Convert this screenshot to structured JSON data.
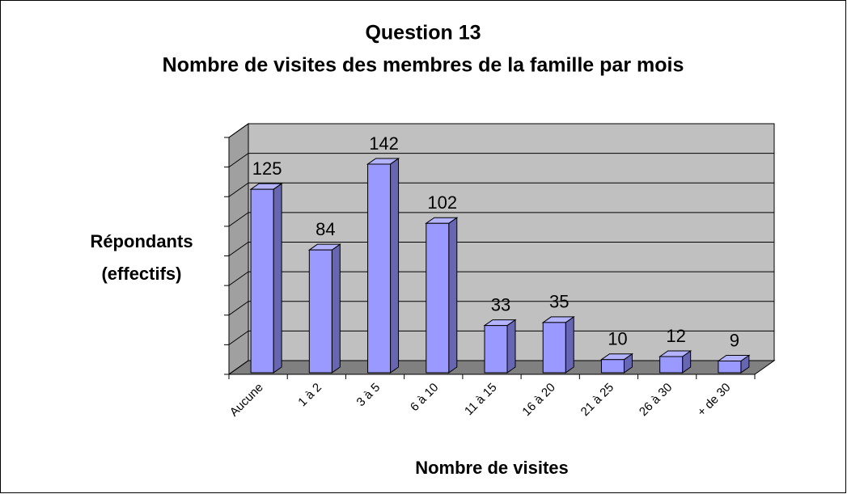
{
  "chart_data": {
    "type": "bar3d",
    "title": "Question 13",
    "subtitle": "Nombre de visites des membres de la famille par mois",
    "xlabel": "Nombre de visites",
    "ylabel": [
      "Répondants",
      "(effectifs)"
    ],
    "categories": [
      "Aucune",
      "1 à 2",
      "3 à 5",
      "6 à 10",
      "11 à 15",
      "16 à 20",
      "21 à 25",
      "26 à 30",
      "+ de 30"
    ],
    "values": [
      125,
      84,
      142,
      102,
      33,
      35,
      10,
      12,
      9
    ],
    "color": "#9999ff",
    "ylim": [
      0,
      160
    ],
    "yticks": [
      0,
      20,
      40,
      60,
      80,
      100,
      120,
      140,
      160
    ],
    "grid": true
  }
}
